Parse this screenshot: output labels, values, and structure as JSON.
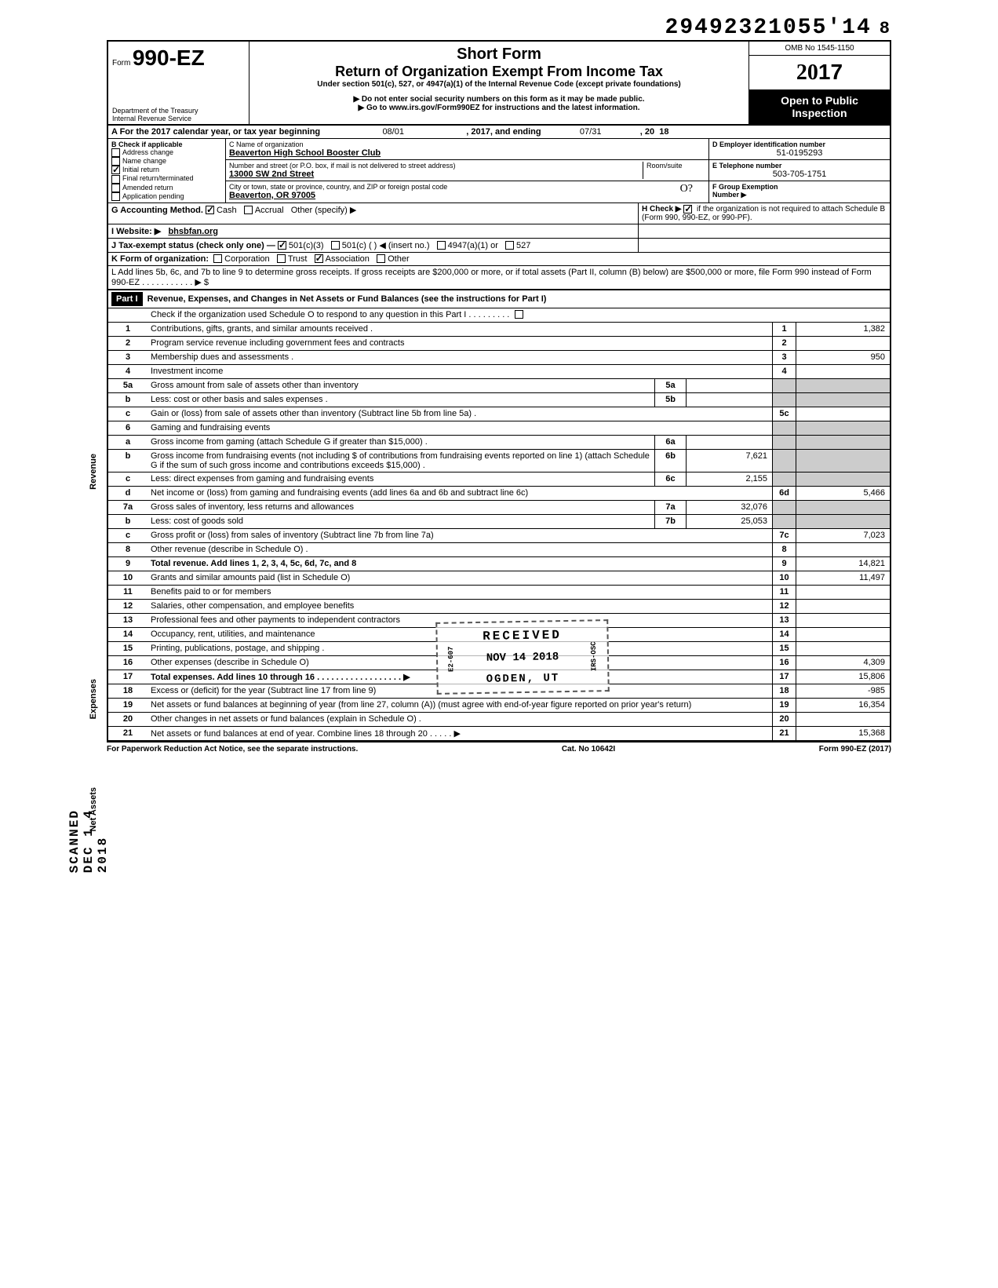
{
  "top_number": "29492321055'14",
  "top_number_suffix": "8",
  "form": {
    "label": "Form",
    "number": "990-EZ",
    "short_form": "Short Form",
    "title": "Return of Organization Exempt From Income Tax",
    "under": "Under section 501(c), 527, or 4947(a)(1) of the Internal Revenue Code (except private foundations)",
    "instr1": "▶ Do not enter social security numbers on this form as it may be made public.",
    "instr2": "▶ Go to www.irs.gov/Form990EZ for instructions and the latest information.",
    "dept": "Department of the Treasury\nInternal Revenue Service",
    "omb": "OMB No 1545-1150",
    "year_prefix": "20",
    "year": "17",
    "open_public": "Open to Public\nInspection"
  },
  "line_a": {
    "text": "A  For the 2017 calendar year, or tax year beginning",
    "begin": "08/01",
    "mid": ", 2017, and ending",
    "end": "07/31",
    "end_year_prefix": ", 20",
    "end_year": "18"
  },
  "section_b": {
    "header": "B  Check if applicable",
    "items": [
      {
        "label": "Address change",
        "checked": false
      },
      {
        "label": "Name change",
        "checked": false
      },
      {
        "label": "Initial return",
        "checked": true
      },
      {
        "label": "Final return/terminated",
        "checked": false
      },
      {
        "label": "Amended return",
        "checked": false
      },
      {
        "label": "Application pending",
        "checked": false
      }
    ]
  },
  "section_c": {
    "header": "C  Name of organization",
    "name": "Beaverton High School Booster Club",
    "addr_label": "Number and street (or P.O. box, if mail is not delivered to street address)",
    "room_label": "Room/suite",
    "addr": "13000 SW 2nd Street",
    "city_label": "City or town, state or province, country, and ZIP or foreign postal code",
    "city": "Beaverton, OR 97005"
  },
  "section_d": {
    "header": "D  Employer identification number",
    "ein": "51-0195293",
    "e_label": "E  Telephone number",
    "phone": "503-705-1751",
    "f_label": "F  Group Exemption\n    Number ▶"
  },
  "line_g": {
    "label": "G  Accounting Method.",
    "cash": "Cash",
    "accrual": "Accrual",
    "other": "Other (specify) ▶",
    "cash_checked": true
  },
  "line_h": {
    "text": "H  Check ▶",
    "checked": true,
    "rest": "if the organization is not required to attach Schedule B (Form 990, 990-EZ, or 990-PF)."
  },
  "line_i": {
    "label": "I  Website: ▶",
    "value": "bhsbfan.org"
  },
  "line_j": {
    "label": "J  Tax-exempt status (check only one) —",
    "c501c3": "501(c)(3)",
    "c501c3_checked": true,
    "c501c": "501(c) (        ) ◀ (insert no.)",
    "c4947": "4947(a)(1) or",
    "c527": "527"
  },
  "line_k": {
    "label": "K  Form of organization:",
    "corp": "Corporation",
    "trust": "Trust",
    "assoc": "Association",
    "assoc_checked": true,
    "other": "Other"
  },
  "line_l": {
    "text": "L  Add lines 5b, 6c, and 7b to line 9 to determine gross receipts. If gross receipts are $200,000 or more, or if total assets (Part II, column (B) below) are $500,000 or more, file Form 990 instead of Form 990-EZ .  .  .  .  .  .  .  .  .  .  .  ▶   $"
  },
  "part1": {
    "label": "Part I",
    "title": "Revenue, Expenses, and Changes in Net Assets or Fund Balances (see the instructions for Part I)",
    "check_o": "Check if the organization used Schedule O to respond to any question in this Part I  .  .  .  .  .  .  .  .  ."
  },
  "lines": {
    "1": {
      "desc": "Contributions, gifts, grants, and similar amounts received .",
      "val": "1,382"
    },
    "2": {
      "desc": "Program service revenue including government fees and contracts",
      "val": ""
    },
    "3": {
      "desc": "Membership dues and assessments .",
      "val": "950"
    },
    "4": {
      "desc": "Investment income",
      "val": ""
    },
    "5a": {
      "desc": "Gross amount from sale of assets other than inventory",
      "sub": "5a",
      "subval": ""
    },
    "5b": {
      "desc": "Less: cost or other basis and sales expenses .",
      "sub": "5b",
      "subval": ""
    },
    "5c": {
      "desc": "Gain or (loss) from sale of assets other than inventory (Subtract line 5b from line 5a) .",
      "val": ""
    },
    "6": {
      "desc": "Gaming and fundraising events"
    },
    "6a": {
      "desc": "Gross income from gaming (attach Schedule G if greater than $15,000) .",
      "sub": "6a",
      "subval": ""
    },
    "6b": {
      "desc": "Gross income from fundraising events (not including  $                    of contributions from fundraising events reported on line 1) (attach Schedule G if the sum of such gross income and contributions exceeds $15,000) .",
      "sub": "6b",
      "subval": "7,621"
    },
    "6c": {
      "desc": "Less: direct expenses from gaming and fundraising events",
      "sub": "6c",
      "subval": "2,155"
    },
    "6d": {
      "desc": "Net income or (loss) from gaming and fundraising events (add lines 6a and 6b and subtract line 6c)",
      "val": "5,466"
    },
    "7a": {
      "desc": "Gross sales of inventory, less returns and allowances",
      "sub": "7a",
      "subval": "32,076"
    },
    "7b": {
      "desc": "Less: cost of goods sold",
      "sub": "7b",
      "subval": "25,053"
    },
    "7c": {
      "desc": "Gross profit or (loss) from sales of inventory (Subtract line 7b from line 7a)",
      "val": "7,023"
    },
    "8": {
      "desc": "Other revenue (describe in Schedule O) .",
      "val": ""
    },
    "9": {
      "desc": "Total revenue. Add lines 1, 2, 3, 4, 5c, 6d, 7c, and 8",
      "val": "14,821",
      "bold": true
    },
    "10": {
      "desc": "Grants and similar amounts paid (list in Schedule O)",
      "val": "11,497"
    },
    "11": {
      "desc": "Benefits paid to or for members",
      "val": ""
    },
    "12": {
      "desc": "Salaries, other compensation, and employee benefits",
      "val": ""
    },
    "13": {
      "desc": "Professional fees and other payments to independent contractors",
      "val": ""
    },
    "14": {
      "desc": "Occupancy, rent, utilities, and maintenance",
      "val": ""
    },
    "15": {
      "desc": "Printing, publications, postage, and shipping .",
      "val": ""
    },
    "16": {
      "desc": "Other expenses (describe in Schedule O)",
      "val": "4,309"
    },
    "17": {
      "desc": "Total expenses. Add lines 10 through 16  .   .   .   .   .   .   .   .   .   .   .   .   .   .   .   .   .   .  ▶",
      "val": "15,806",
      "bold": true
    },
    "18": {
      "desc": "Excess or (deficit) for the year (Subtract line 17 from line 9)",
      "val": "-985"
    },
    "19": {
      "desc": "Net assets or fund balances at beginning of year (from line 27, column (A)) (must agree with end-of-year figure reported on prior year's return)",
      "val": "16,354"
    },
    "20": {
      "desc": "Other changes in net assets or fund balances (explain in Schedule O) .",
      "val": ""
    },
    "21": {
      "desc": "Net assets or fund balances at end of year. Combine lines 18 through 20   .   .   .   .   .  ▶",
      "val": "15,368"
    }
  },
  "vert_labels": {
    "revenue": "Revenue",
    "expenses": "Expenses",
    "net_assets": "Net Assets"
  },
  "stamps": {
    "scanned": "SCANNED  DEC 1 4 2018",
    "received_title": "RECEIVED",
    "received_date": "NOV 14 2018",
    "received_loc": "OGDEN, UT",
    "received_side": "IRS-OSC",
    "received_side2": "E2-607"
  },
  "footer": {
    "left": "For Paperwork Reduction Act Notice, see the separate instructions.",
    "mid": "Cat. No 10642I",
    "right": "Form 990-EZ (2017)"
  },
  "handwritten_init": "O?"
}
